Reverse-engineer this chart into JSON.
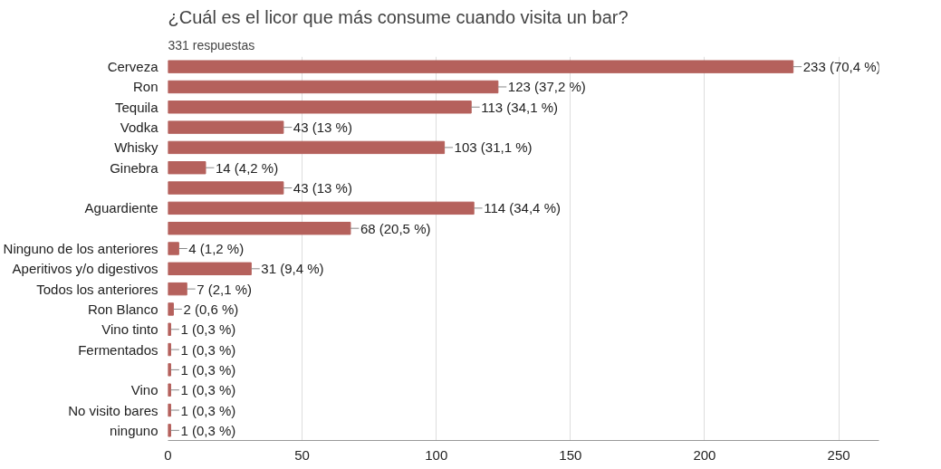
{
  "chart_data": {
    "type": "bar",
    "orientation": "horizontal",
    "title": "¿Cuál es el licor que más consume cuando visita un bar?",
    "subtitle": "331 respuestas",
    "categories": [
      "Cerveza",
      "Ron",
      "Tequila",
      "Vodka",
      "Whisky",
      "Ginebra",
      null,
      "Aguardiente",
      null,
      "Ninguno de los anteriores",
      "Aperitivos y/o digestivos",
      "Todos los anteriores",
      "Ron Blanco",
      "Vino tinto",
      "Fermentados",
      null,
      "Vino",
      "No visito bares",
      "ninguno"
    ],
    "values": [
      233,
      123,
      113,
      43,
      103,
      14,
      43,
      114,
      68,
      4,
      31,
      7,
      2,
      1,
      1,
      1,
      1,
      1,
      1
    ],
    "value_labels": [
      "233 (70,4 %)",
      "123 (37,2 %)",
      "113 (34,1 %)",
      "43 (13 %)",
      "103 (31,1 %)",
      "14 (4,2 %)",
      "43 (13 %)",
      "114 (34,4 %)",
      "68 (20,5 %)",
      "4 (1,2 %)",
      "31 (9,4 %)",
      "7 (2,1 %)",
      "2 (0,6 %)",
      "1 (0,3 %)",
      "1 (0,3 %)",
      "1 (0,3 %)",
      "1 (0,3 %)",
      "1 (0,3 %)",
      "1 (0,3 %)"
    ],
    "color": "#b5615c",
    "xlim": [
      0,
      265
    ],
    "xticks": [
      0,
      50,
      100,
      150,
      200,
      250
    ],
    "grid": "x"
  }
}
